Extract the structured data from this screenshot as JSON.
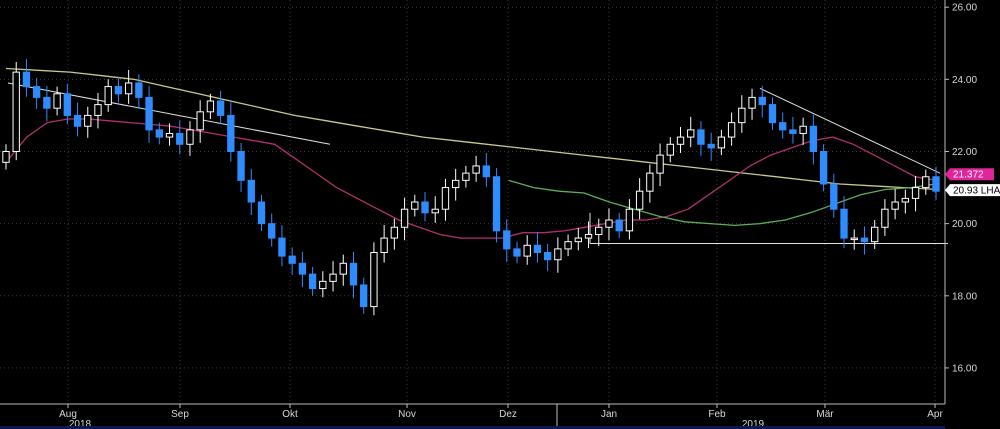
{
  "chart_data": {
    "type": "candlestick",
    "title": "",
    "xlabel": "",
    "ylabel": "",
    "ylim": [
      15.0,
      26.2
    ],
    "y_ticks": [
      "26.00",
      "24.00",
      "22.00",
      "20.00",
      "18.00",
      "16.00"
    ],
    "y_tick_values": [
      26,
      24,
      22,
      20,
      18,
      16
    ],
    "x_month_labels": [
      "Aug",
      "Sep",
      "Okt",
      "Nov",
      "Dez",
      "Jan",
      "Feb",
      "Mär",
      "Apr"
    ],
    "x_year_labels": [
      "2018",
      "2019"
    ],
    "grid": true,
    "colors": {
      "background": "#000000",
      "up_candle": "#ffffff",
      "down_candle": "#2f8cff",
      "ma_short": "#b0306e",
      "ma_mid": "#5fae5a",
      "ma_long": "#c9c98c",
      "trendline": "#e0e0e0",
      "tag_price_bg": "#e0249a",
      "tag_price_text": "#ffffff",
      "tag_label_bg": "#ffffff",
      "tag_label_text": "#000000"
    },
    "price_tags": [
      {
        "label": "21.372",
        "value": 21.37,
        "style": "price"
      },
      {
        "label": "20.93 LHA",
        "value": 20.93,
        "style": "label"
      }
    ],
    "close_series": [
      22.0,
      24.2,
      23.8,
      23.5,
      23.2,
      23.6,
      23.0,
      22.7,
      23.0,
      23.3,
      23.8,
      23.6,
      23.9,
      23.5,
      22.6,
      22.4,
      22.5,
      22.2,
      22.6,
      23.1,
      23.4,
      23.0,
      22.0,
      21.2,
      20.6,
      20.0,
      19.6,
      19.1,
      18.9,
      18.6,
      18.2,
      18.4,
      18.6,
      18.9,
      18.3,
      17.7,
      19.2,
      19.6,
      19.9,
      20.4,
      20.6,
      20.3,
      20.4,
      21.0,
      21.2,
      21.4,
      21.6,
      21.3,
      19.8,
      19.3,
      19.1,
      19.4,
      19.2,
      19.0,
      19.3,
      19.5,
      19.6,
      19.7,
      19.9,
      20.1,
      19.8,
      20.4,
      20.9,
      21.4,
      21.9,
      22.2,
      22.4,
      22.6,
      22.2,
      22.1,
      22.4,
      22.8,
      23.2,
      23.5,
      23.3,
      22.8,
      22.6,
      22.5,
      22.7,
      22.0,
      21.1,
      20.4,
      19.6,
      19.6,
      19.5,
      19.9,
      20.4,
      20.6,
      20.7,
      21.0,
      21.3,
      20.9
    ],
    "ma_short_series": [
      21.7,
      22.4,
      22.8,
      22.9,
      22.9,
      22.85,
      22.8,
      22.75,
      22.7,
      22.6,
      22.5,
      22.4,
      22.3,
      22.2,
      21.8,
      21.4,
      21.0,
      20.7,
      20.4,
      20.1,
      19.9,
      19.7,
      19.6,
      19.6,
      19.6,
      19.75,
      19.75,
      19.8,
      19.9,
      20.0,
      20.1,
      20.1,
      20.2,
      20.4,
      20.8,
      21.2,
      21.6,
      21.9,
      22.1,
      22.3,
      22.4,
      22.2,
      21.9,
      21.6,
      21.3,
      21.2
    ],
    "ma_mid_series": [
      null,
      null,
      null,
      null,
      null,
      null,
      null,
      null,
      null,
      null,
      null,
      null,
      null,
      null,
      null,
      null,
      null,
      null,
      null,
      null,
      21.2,
      21.0,
      20.9,
      20.85,
      20.6,
      20.4,
      20.2,
      20.05,
      20.0,
      19.95,
      20.0,
      20.1,
      20.3,
      20.55,
      20.8,
      20.95,
      21.0,
      21.1
    ],
    "ma_long_series": [
      24.3,
      24.25,
      24.2,
      24.1,
      24.0,
      23.8,
      23.6,
      23.4,
      23.2,
      23.0,
      22.85,
      22.7,
      22.55,
      22.4,
      22.3,
      22.2,
      22.1,
      22.0,
      21.9,
      21.8,
      21.7,
      21.6,
      21.5,
      21.4,
      21.3,
      21.2,
      21.1,
      21.05,
      21.0,
      20.95
    ]
  }
}
